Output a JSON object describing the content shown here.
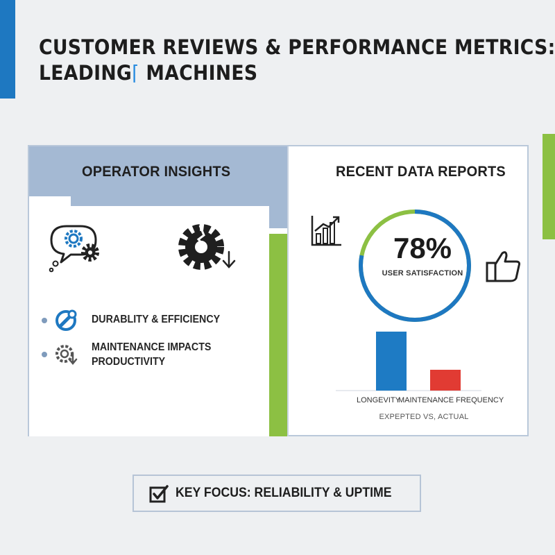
{
  "page": {
    "title_line1": "CUSTOMER REVIEWS & PERFORMANCE METRICS:",
    "title_line2": "LEADING",
    "title_cursor": "⌨",
    "title_line2_rest": " MACHINES"
  },
  "operator_insights": {
    "title": "OPERATOR INSIGHTS",
    "icons": [
      "thought-bubble-gears-icon",
      "broken-gear-down-arrow-icon"
    ],
    "bullets": [
      {
        "icon": "wrench-icon",
        "text": "DURABLITY & EFFICIENCY"
      },
      {
        "icon": "gear-down-arrow-icon",
        "text_line1": "MAINTENANCE IMPACTS",
        "text_line2": "PRODUCTIVITY"
      }
    ]
  },
  "recent_reports": {
    "title": "RECENT DATA REPORTS",
    "icons": [
      "growth-chart-icon",
      "thumbs-up-icon"
    ],
    "gauge": {
      "value_text": "78%",
      "value": 78,
      "label": "USER SATISFACTION"
    },
    "chart_data": {
      "type": "bar",
      "categories": [
        "LONGEVITY",
        "MAINTENANCE FREQUENCY"
      ],
      "values": [
        85,
        30
      ],
      "colors": [
        "#1e7bc4",
        "#e13b33"
      ],
      "title": "",
      "xlabel": "EXPEPTED VS, ACTUAL",
      "ylabel": "",
      "ylim": [
        0,
        100
      ]
    }
  },
  "focus": {
    "label": "KEY FOCUS: RELIABILITY & UPTIME"
  },
  "colors": {
    "blue": "#1e78c1",
    "green": "#8cc043",
    "red": "#e13b33",
    "header": "#a4b9d3"
  }
}
